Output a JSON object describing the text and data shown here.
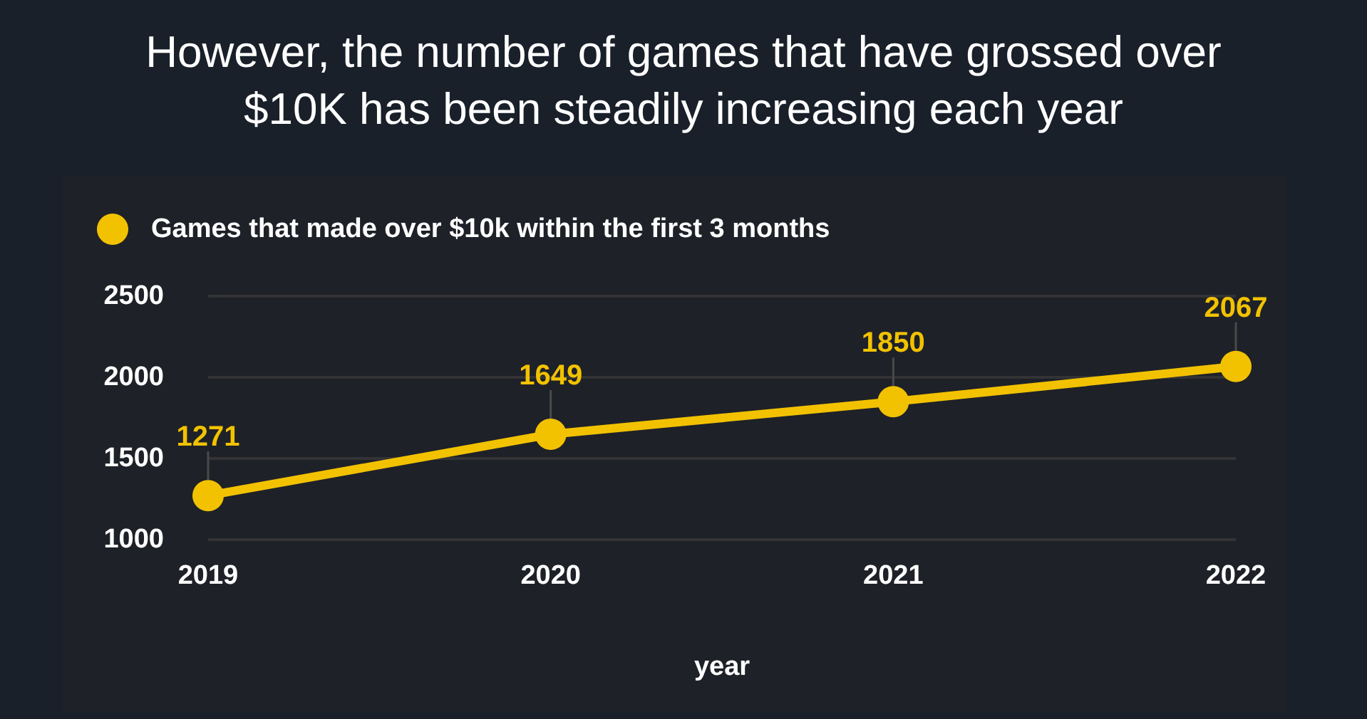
{
  "chart_data": {
    "type": "line",
    "title": "However, the number of games that have grossed over $10K has been steadily increasing each year",
    "xlabel": "year",
    "categories": [
      "2019",
      "2020",
      "2021",
      "2022"
    ],
    "series": [
      {
        "name": "Games that made over $10k within the first 3 months",
        "color": "#f2c200",
        "values": [
          1271,
          1649,
          1850,
          2067
        ]
      }
    ],
    "ylim": [
      1000,
      2500
    ],
    "yticks": [
      1000,
      1500,
      2000,
      2500
    ],
    "grid": "y",
    "legend": "top left",
    "marker": "circle",
    "line_style": "solid",
    "data_labels": true
  }
}
